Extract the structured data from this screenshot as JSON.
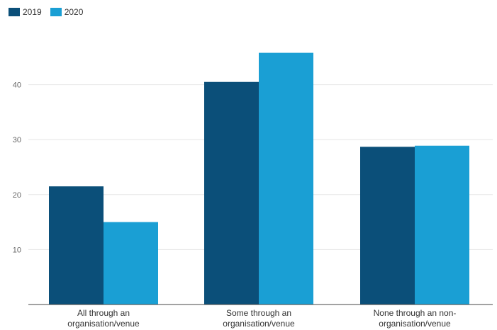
{
  "chart_data": {
    "type": "bar",
    "categories": [
      [
        "All through an",
        "organisation/venue"
      ],
      [
        "Some through an",
        "organisation/venue"
      ],
      [
        "None through an non-",
        "organisation/venue"
      ]
    ],
    "series": [
      {
        "name": "2019",
        "values": [
          21.5,
          40.5,
          28.7
        ],
        "color": "#0b4f79"
      },
      {
        "name": "2020",
        "values": [
          15.0,
          45.8,
          28.9
        ],
        "color": "#1a9fd4"
      }
    ],
    "yticks": [
      10,
      20,
      30,
      40
    ],
    "ylim": [
      0,
      50
    ],
    "grid": true,
    "legend": "top-left",
    "title": "",
    "xlabel": "",
    "ylabel": ""
  }
}
